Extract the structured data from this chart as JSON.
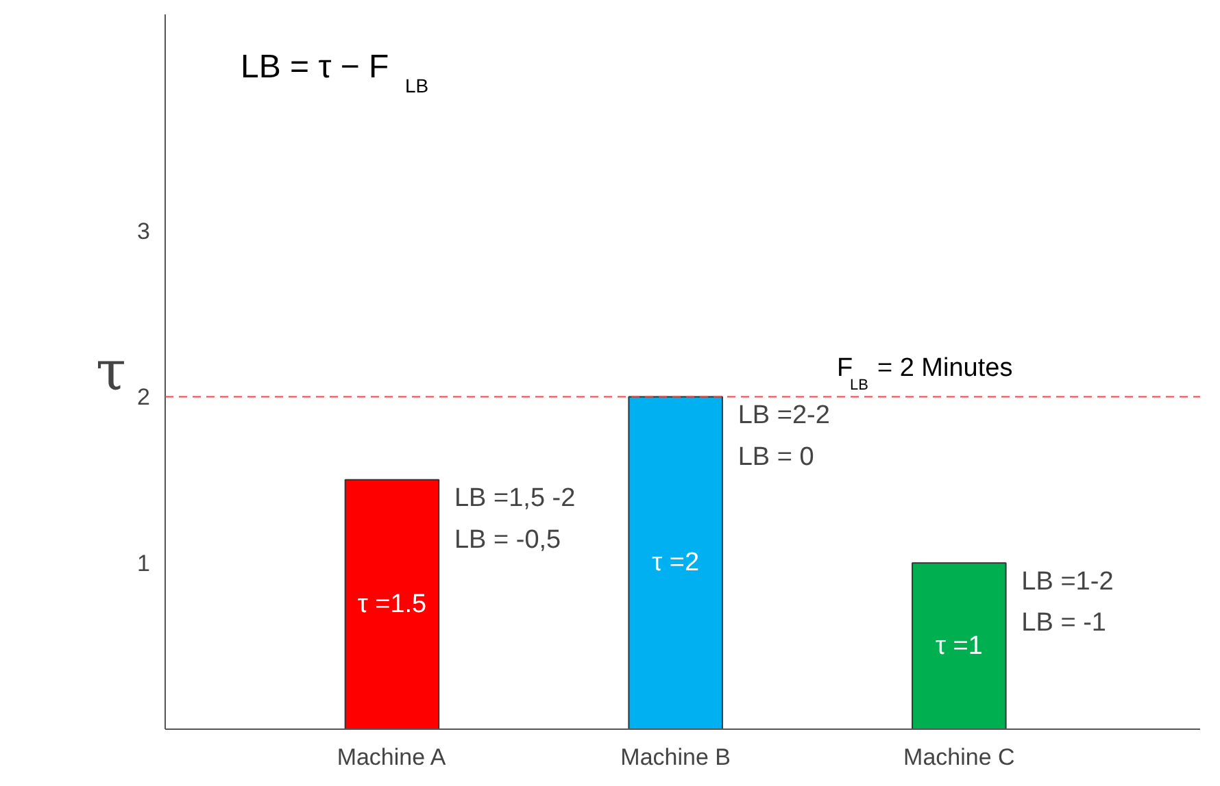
{
  "chart_data": {
    "type": "bar",
    "title": "LB = τ − F$_{LB}$",
    "ylabel": "τ",
    "categories": [
      "Machine A",
      "Machine B",
      "Machine C"
    ],
    "values": [
      1.5,
      2,
      1
    ],
    "colors": [
      "#ff0000",
      "#00b0f0",
      "#00b050"
    ],
    "value_labels": [
      "τ =1.5",
      "τ =2",
      "τ =1"
    ],
    "ylim": [
      0,
      4.3
    ],
    "yticks": [
      1,
      2,
      3
    ],
    "grid": false,
    "ref_lines": [
      {
        "axis": "y",
        "value": 2,
        "label": "F$_{LB}$ = 2 Minutes",
        "color": "#ff4040",
        "line_style": "dashed"
      }
    ],
    "annotations": [
      "LB =1,5 -2",
      "LB = -0,5",
      "LB =2-2",
      "LB = 0",
      "LB =1-2",
      "LB = -1"
    ]
  }
}
